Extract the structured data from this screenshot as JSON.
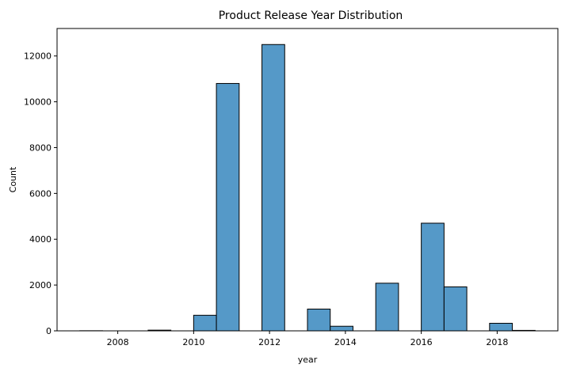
{
  "chart_data": {
    "type": "bar",
    "title": "Product Release Year Distribution",
    "xlabel": "year",
    "ylabel": "Count",
    "xlim": [
      2006.4,
      2019.6
    ],
    "ylim": [
      0,
      13200
    ],
    "x_ticks": [
      2008,
      2010,
      2012,
      2014,
      2016,
      2018
    ],
    "y_ticks": [
      0,
      2000,
      4000,
      6000,
      8000,
      10000,
      12000
    ],
    "grid": false,
    "bar_color": "#5599c8",
    "bar_edge_color": "#000000",
    "bins": [
      {
        "x0": 2007.0,
        "x1": 2007.6,
        "count": 5
      },
      {
        "x0": 2007.6,
        "x1": 2008.2,
        "count": 0
      },
      {
        "x0": 2008.2,
        "x1": 2008.8,
        "count": 0
      },
      {
        "x0": 2008.8,
        "x1": 2009.4,
        "count": 30
      },
      {
        "x0": 2009.4,
        "x1": 2010.0,
        "count": 0
      },
      {
        "x0": 2010.0,
        "x1": 2010.6,
        "count": 680
      },
      {
        "x0": 2010.6,
        "x1": 2011.2,
        "count": 10800
      },
      {
        "x0": 2011.2,
        "x1": 2011.8,
        "count": 0
      },
      {
        "x0": 2011.8,
        "x1": 2012.4,
        "count": 12500
      },
      {
        "x0": 2012.4,
        "x1": 2013.0,
        "count": 0
      },
      {
        "x0": 2013.0,
        "x1": 2013.6,
        "count": 950
      },
      {
        "x0": 2013.6,
        "x1": 2014.2,
        "count": 200
      },
      {
        "x0": 2014.2,
        "x1": 2014.8,
        "count": 0
      },
      {
        "x0": 2014.8,
        "x1": 2015.4,
        "count": 2080
      },
      {
        "x0": 2015.4,
        "x1": 2016.0,
        "count": 0
      },
      {
        "x0": 2016.0,
        "x1": 2016.6,
        "count": 4700
      },
      {
        "x0": 2016.6,
        "x1": 2017.2,
        "count": 1920
      },
      {
        "x0": 2017.2,
        "x1": 2017.8,
        "count": 0
      },
      {
        "x0": 2017.8,
        "x1": 2018.4,
        "count": 330
      },
      {
        "x0": 2018.4,
        "x1": 2019.0,
        "count": 20
      }
    ]
  }
}
